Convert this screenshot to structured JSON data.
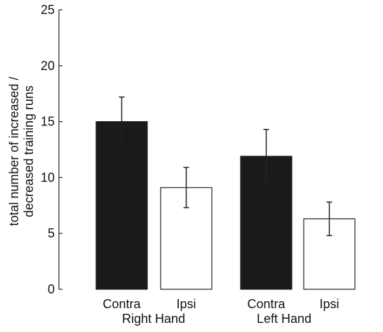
{
  "chart_data": {
    "type": "bar",
    "ylabel_lines": [
      "total number of increased /",
      "decreased training runs"
    ],
    "ylim": [
      0,
      25
    ],
    "yticks": [
      0,
      5,
      10,
      15,
      20,
      25
    ],
    "grid": false,
    "bars": [
      {
        "label": "Contra",
        "group": "Right Hand",
        "value": 15.0,
        "error": 2.2,
        "color": "#1a1a1a"
      },
      {
        "label": "Ipsi",
        "group": "Right Hand",
        "value": 9.1,
        "error": 1.8,
        "color": "#ffffff"
      },
      {
        "label": "Contra",
        "group": "Left Hand",
        "value": 11.9,
        "error": 2.4,
        "color": "#1a1a1a"
      },
      {
        "label": "Ipsi",
        "group": "Left Hand",
        "value": 6.3,
        "error": 1.5,
        "color": "#ffffff"
      }
    ],
    "groups": [
      "Right Hand",
      "Left Hand"
    ]
  }
}
